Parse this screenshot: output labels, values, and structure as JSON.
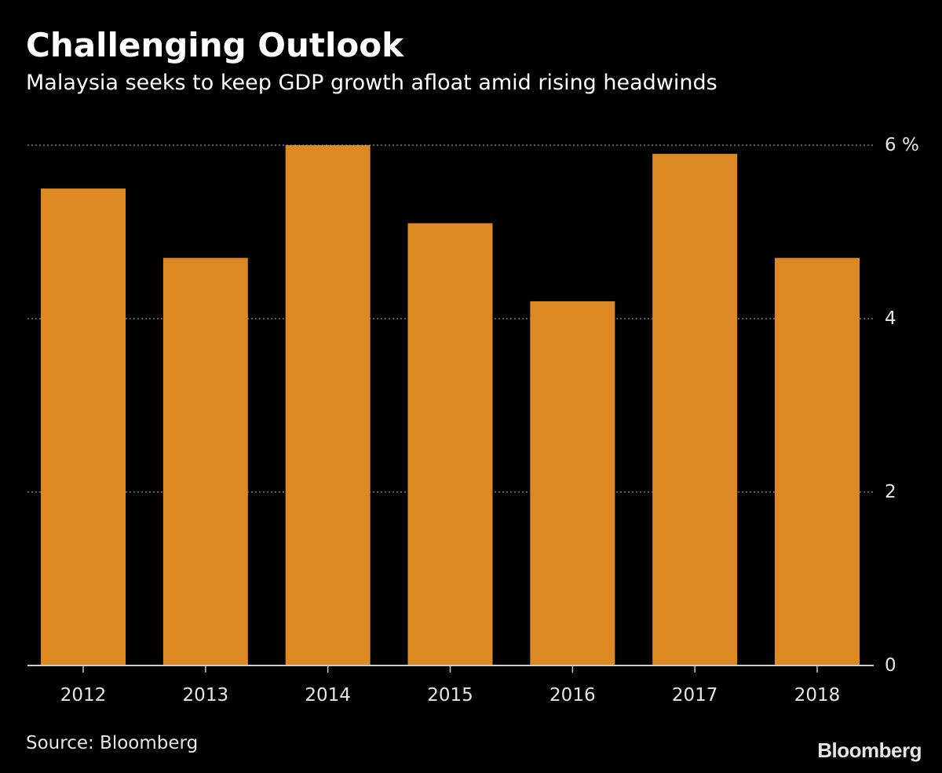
{
  "header": {
    "title": "Challenging Outlook",
    "subtitle": "Malaysia seeks to keep GDP growth afloat amid rising headwinds"
  },
  "footer": {
    "source": "Source: Bloomberg",
    "brand": "Bloomberg"
  },
  "colors": {
    "background": "#000000",
    "bar": "#dc8924",
    "text": "#e6e6e6",
    "grid": "#7a7a7a",
    "axis": "#cccccc"
  },
  "chart_data": {
    "type": "bar",
    "title": "Challenging Outlook",
    "subtitle": "Malaysia seeks to keep GDP growth afloat amid rising headwinds",
    "categories": [
      "2012",
      "2013",
      "2014",
      "2015",
      "2016",
      "2017",
      "2018"
    ],
    "values": [
      5.5,
      4.7,
      6.0,
      5.1,
      4.2,
      5.9,
      4.7
    ],
    "xlabel": "",
    "ylabel": "%",
    "ylim": [
      0,
      6
    ],
    "yticks": [
      {
        "value": 0,
        "label": "0"
      },
      {
        "value": 2,
        "label": "2"
      },
      {
        "value": 4,
        "label": "4"
      },
      {
        "value": 6,
        "label": "6 %"
      }
    ],
    "grid": true,
    "y_axis_position": "right",
    "legend": "none"
  }
}
